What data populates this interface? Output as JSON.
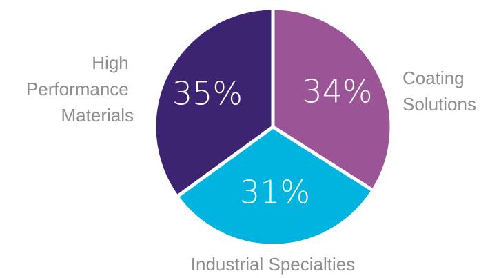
{
  "chart_data": {
    "type": "pie",
    "categories": [
      "Coating Solutions",
      "Industrial Specialties",
      "High Performance Materials"
    ],
    "values": [
      34,
      31,
      35
    ],
    "value_labels": [
      "34%",
      "31%",
      "35%"
    ],
    "colors": [
      "#9b5495",
      "#00b4df",
      "#3c2472"
    ],
    "start_angle": "12 o'clock",
    "direction": "clockwise"
  },
  "labels": {
    "coating": [
      "Coating",
      "Solutions"
    ],
    "industrial": [
      "Industrial Specialties"
    ],
    "high_perf": [
      "High",
      "Performance",
      "Materials"
    ]
  }
}
